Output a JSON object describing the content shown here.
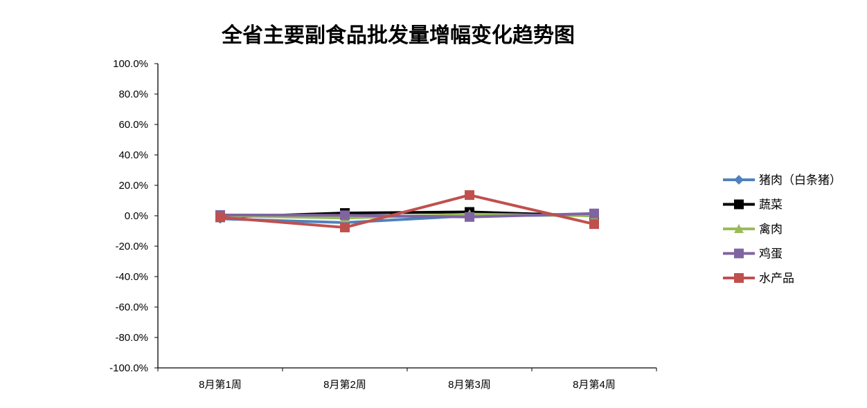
{
  "chart_data": {
    "type": "line",
    "title": "全省主要副食品批发量增幅变化趋势图",
    "categories": [
      "8月第1周",
      "8月第2周",
      "8月第3周",
      "8月第4周"
    ],
    "ylim": [
      -100,
      100
    ],
    "yticks": [
      "100.0%",
      "80.0%",
      "60.0%",
      "40.0%",
      "20.0%",
      "0.0%",
      "-20.0%",
      "-40.0%",
      "-60.0%",
      "-80.0%",
      "-100.0%"
    ],
    "grid": false,
    "legend": "right",
    "series": [
      {
        "name": "猪肉（白条猪）",
        "values": [
          -2.0,
          -4.5,
          0.0,
          0.5
        ],
        "color": "#4F81BD",
        "marker": "diamond"
      },
      {
        "name": "蔬菜",
        "values": [
          -1.0,
          1.8,
          2.5,
          0.0
        ],
        "color": "#000000",
        "marker": "square"
      },
      {
        "name": "禽肉",
        "values": [
          0.0,
          -1.5,
          1.0,
          0.0
        ],
        "color": "#9BBB59",
        "marker": "triangle"
      },
      {
        "name": "鸡蛋",
        "values": [
          0.5,
          0.3,
          -0.8,
          1.5
        ],
        "color": "#8064A2",
        "marker": "square"
      },
      {
        "name": "水产品",
        "values": [
          -1.0,
          -7.7,
          13.6,
          -5.5
        ],
        "color": "#C0504D",
        "marker": "square"
      }
    ]
  }
}
